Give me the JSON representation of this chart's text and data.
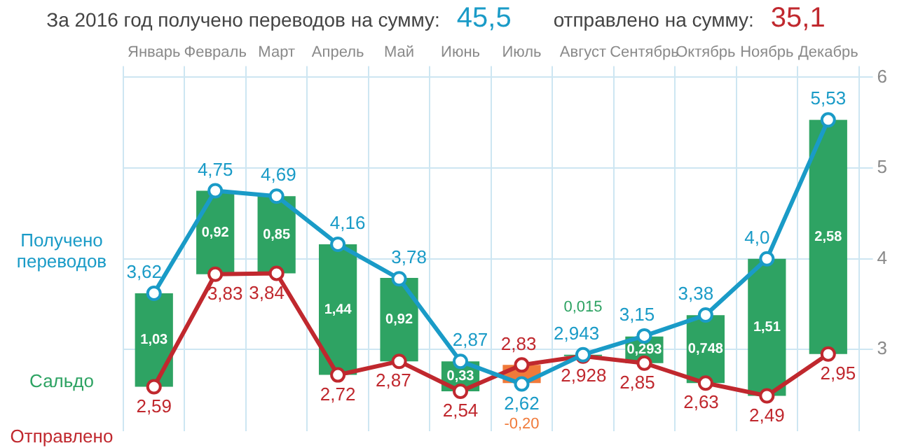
{
  "chart_data": {
    "type": "bar",
    "title": "За 2016 год получено переводов на сумму:",
    "annotations": [
      "45,5",
      "отправлено на сумму:",
      "35,1"
    ],
    "categories": [
      "Январь",
      "Февраль",
      "Март",
      "Апрель",
      "Май",
      "Июнь",
      "Июль",
      "Август",
      "Сентябрь",
      "Октябрь",
      "Ноябрь",
      "Декабрь"
    ],
    "series": [
      {
        "name": "Сальдо",
        "color": "#2ea363",
        "colors": [
          "#2ea363",
          "#2ea363",
          "#2ea363",
          "#2ea363",
          "#2ea363",
          "#2ea363",
          "#f07a3a",
          "#2ea363",
          "#2ea363",
          "#2ea363",
          "#2ea363",
          "#2ea363"
        ],
        "base": [
          2.59,
          3.83,
          3.84,
          2.72,
          2.87,
          2.54,
          2.83,
          2.928,
          2.85,
          2.63,
          2.49,
          2.95
        ],
        "values": [
          1.03,
          0.92,
          0.85,
          1.44,
          0.92,
          0.33,
          -0.2,
          0.015,
          0.293,
          0.748,
          1.51,
          2.58
        ],
        "value_labels": [
          "1,03",
          "0,92",
          "0,85",
          "1,44",
          "0,92",
          "0,33",
          "-0,20",
          "0,015",
          "0,293",
          "0,748",
          "1,51",
          "2,58"
        ]
      },
      {
        "type": "line",
        "name": "Получено переводов",
        "color": "#1a9bc7",
        "values": [
          3.62,
          4.75,
          4.69,
          4.16,
          3.78,
          2.87,
          2.62,
          2.943,
          3.15,
          3.38,
          4.0,
          5.53
        ],
        "value_labels": [
          "3,62",
          "4,75",
          "4,69",
          "4,16",
          "3,78",
          "2,87",
          "2,62",
          "2,943",
          "3,15",
          "3,38",
          "4,0",
          "5,53"
        ]
      },
      {
        "type": "line",
        "name": "Отправлено",
        "color": "#c0282e",
        "values": [
          2.59,
          3.83,
          3.84,
          2.72,
          2.87,
          2.54,
          2.83,
          2.928,
          2.85,
          2.63,
          2.49,
          2.95
        ],
        "value_labels": [
          "2,59",
          "3,83",
          "3,84",
          "2,72",
          "2,87",
          "2,54",
          "2,83",
          "2,928",
          "2,85",
          "2,63",
          "2,49",
          "2,95"
        ]
      }
    ],
    "ylim": [
      2.1,
      6
    ],
    "yticks": [
      3,
      4,
      5,
      6
    ],
    "grid": true,
    "legend": false,
    "marker": "circle",
    "line_style": "solid"
  }
}
